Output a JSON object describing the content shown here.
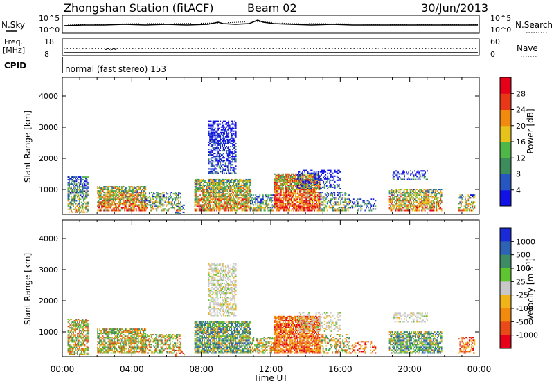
{
  "header": {
    "title": "Zhongshan Station (fitACF)",
    "beam": "Beam 02",
    "date": "30/Jun/2013"
  },
  "top_panel": {
    "left_label": "N.Sky",
    "right_label": "N.Search",
    "left_ticks": [
      "10^5",
      "10^0"
    ],
    "right_ticks": [
      "10^5",
      "10^0"
    ]
  },
  "freq_panel": {
    "left_label_line1": "Freq.",
    "left_label_line2": "[MHz]",
    "right_label": "Nave",
    "left_ticks": [
      "18",
      "8"
    ],
    "right_ticks": [
      "60",
      "0"
    ]
  },
  "cpid": {
    "label": "CPID",
    "text": "normal (fast stereo) 153"
  },
  "chart_data": [
    {
      "type": "heatmap",
      "name": "power",
      "ylabel": "Slant Range [km]",
      "yticks": [
        1000,
        2000,
        3000,
        4000
      ],
      "ylim": [
        200,
        4600
      ],
      "xlim": [
        0,
        24
      ],
      "colorbar_label": "Power [dB]",
      "colorbar_ticks": [
        "4",
        "8",
        "12",
        "16",
        "20",
        "24",
        "28"
      ],
      "colorbar_colors": [
        "#1212e6",
        "#2756c0",
        "#3d8c5c",
        "#4fb748",
        "#e6c21a",
        "#f28a10",
        "#e83818",
        "#e6001a"
      ]
    },
    {
      "type": "heatmap",
      "name": "velocity",
      "ylabel": "Slant Range [km]",
      "yticks": [
        1000,
        2000,
        3000,
        4000
      ],
      "ylim": [
        200,
        4600
      ],
      "xlim": [
        0,
        24
      ],
      "xlabel": "Time UT",
      "xticks": [
        "00:00",
        "04:00",
        "08:00",
        "12:00",
        "16:00",
        "20:00",
        "00:00"
      ],
      "colorbar_label": "Velocity [m s-1]",
      "colorbar_ticks": [
        "1000",
        "500",
        "100",
        "25",
        "-25",
        "-100",
        "-500",
        "-1000"
      ],
      "colorbar_colors": [
        "#1a2ad6",
        "#2e62b4",
        "#3e8c66",
        "#5ec430",
        "#c8c8c8",
        "#f0b418",
        "#f28a10",
        "#e84a18",
        "#e6001a"
      ]
    }
  ]
}
